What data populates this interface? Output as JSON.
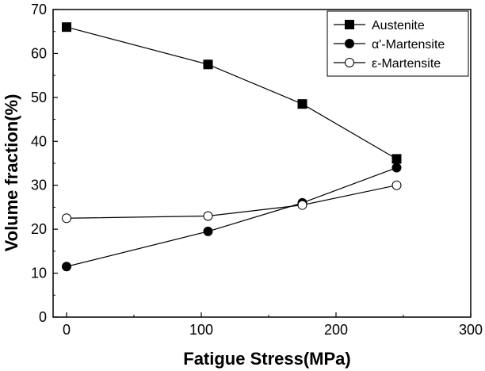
{
  "chart_data": {
    "type": "line",
    "title": "",
    "xlabel": "Fatigue Stress(MPa)",
    "ylabel": "Volume fraction(%)",
    "xlim": [
      -10,
      300
    ],
    "ylim": [
      0,
      70
    ],
    "xticks": [
      0,
      100,
      200,
      300
    ],
    "yticks": [
      0,
      10,
      20,
      30,
      40,
      50,
      60,
      70
    ],
    "grid": false,
    "legend_position": "top-right",
    "series": [
      {
        "name": "Austenite",
        "marker": "square-filled",
        "color": "#000000",
        "x": [
          0,
          105,
          175,
          245
        ],
        "values": [
          66,
          57.5,
          48.5,
          36
        ]
      },
      {
        "name": "α'-Martensite",
        "marker": "circle-filled",
        "color": "#000000",
        "x": [
          0,
          105,
          175,
          245
        ],
        "values": [
          11.5,
          19.5,
          26,
          34
        ]
      },
      {
        "name": "ε-Martensite",
        "marker": "circle-open",
        "color": "#000000",
        "x": [
          0,
          105,
          175,
          245
        ],
        "values": [
          22.5,
          23,
          25.5,
          30
        ]
      }
    ]
  }
}
